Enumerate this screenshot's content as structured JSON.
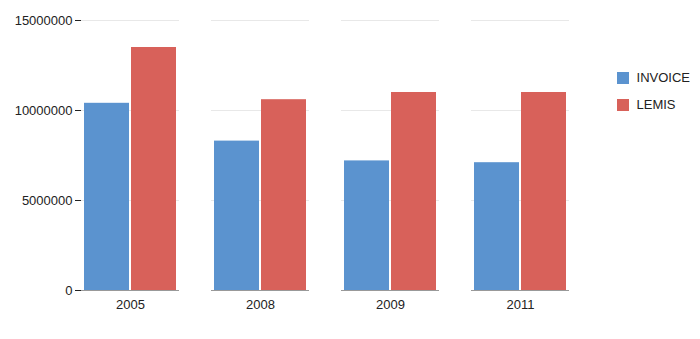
{
  "chart_data": {
    "type": "bar",
    "categories": [
      "2005",
      "2008",
      "2009",
      "2011"
    ],
    "series": [
      {
        "name": "INVOICE",
        "color": "#5b93cf",
        "values": [
          10400000,
          8300000,
          7200000,
          7100000
        ]
      },
      {
        "name": "LEMIS",
        "color": "#d8615a",
        "values": [
          13500000,
          10600000,
          11000000,
          11000000
        ]
      }
    ],
    "ylim": [
      0,
      15000000
    ],
    "yticks": [
      0,
      5000000,
      10000000,
      15000000
    ],
    "grid": true,
    "legend": "right"
  }
}
